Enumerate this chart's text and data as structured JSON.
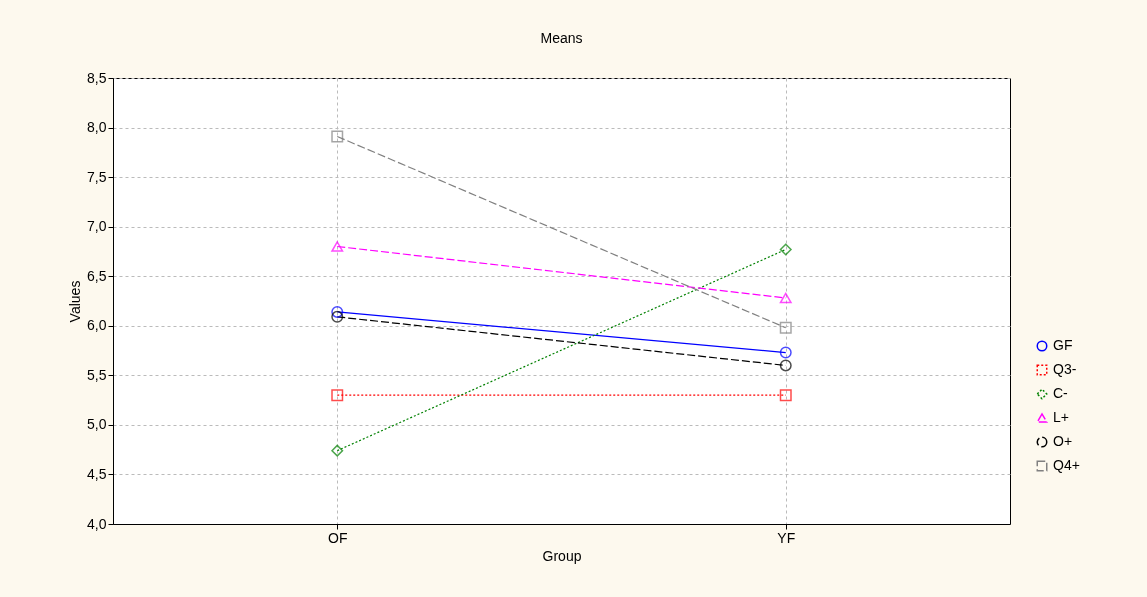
{
  "chart_data": {
    "type": "line",
    "title": "Means",
    "xlabel": "Group",
    "ylabel": "Values",
    "categories": [
      "OF",
      "YF"
    ],
    "series": [
      {
        "name": "GF",
        "color": "#0000ff",
        "values": [
          6.14,
          5.73
        ],
        "marker": "circle",
        "line_style": "solid"
      },
      {
        "name": "Q3-",
        "color": "#ff0000",
        "values": [
          5.3,
          5.3
        ],
        "marker": "square",
        "line_style": "dotted"
      },
      {
        "name": "C-",
        "color": "#008000",
        "values": [
          4.74,
          6.77
        ],
        "marker": "diamond",
        "line_style": "dotted"
      },
      {
        "name": "L+",
        "color": "#ff00ff",
        "values": [
          6.8,
          6.28
        ],
        "marker": "triangle",
        "line_style": "dashed"
      },
      {
        "name": "O+",
        "color": "#000000",
        "values": [
          6.09,
          5.6
        ],
        "marker": "circle",
        "line_style": "dashed"
      },
      {
        "name": "Q4+",
        "color": "#808080",
        "values": [
          7.91,
          5.98
        ],
        "marker": "square",
        "line_style": "dashed"
      }
    ],
    "ylim": [
      4,
      8.5
    ],
    "yticks": [
      {
        "value": 4,
        "label": "4,0"
      },
      {
        "value": 4.5,
        "label": "4,5"
      },
      {
        "value": 5,
        "label": "5,0"
      },
      {
        "value": 5.5,
        "label": "5,5"
      },
      {
        "value": 6,
        "label": "6,0"
      },
      {
        "value": 6.5,
        "label": "6,5"
      },
      {
        "value": 7,
        "label": "7,0"
      },
      {
        "value": 7.5,
        "label": "7,5"
      },
      {
        "value": 8,
        "label": "8,0"
      },
      {
        "value": 8.5,
        "label": "8,5"
      }
    ],
    "grid": true,
    "legend": "right"
  }
}
